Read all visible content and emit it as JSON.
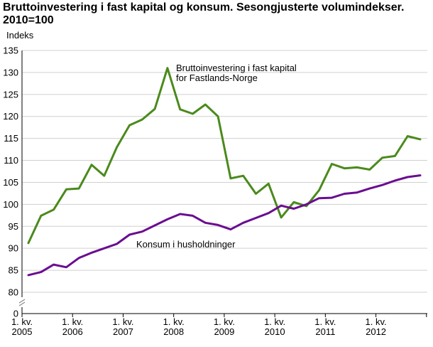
{
  "title": "Bruttoinvestering i fast kapital og konsum. Sesongjusterte volumindekser. 2010=100",
  "chart_data": {
    "type": "line",
    "ylabel": "Indeks",
    "ylim": [
      0,
      135
    ],
    "yticks": [
      0,
      80,
      85,
      90,
      95,
      100,
      105,
      110,
      115,
      120,
      125,
      130,
      135
    ],
    "y_axis_break": true,
    "grid": "horizontal",
    "x_tick_labels": [
      {
        "line1": "1. kv.",
        "line2": "2005"
      },
      {
        "line1": "1. kv.",
        "line2": "2006"
      },
      {
        "line1": "1. kv.",
        "line2": "2007"
      },
      {
        "line1": "1. kv.",
        "line2": "2008"
      },
      {
        "line1": "1. kv.",
        "line2": "2009"
      },
      {
        "line1": "1. kv.",
        "line2": "2010"
      },
      {
        "line1": "1. kv.",
        "line2": "2011"
      },
      {
        "line1": "1. kv.",
        "line2": "2012"
      }
    ],
    "x_quarters": [
      "2005K1",
      "2005K2",
      "2005K3",
      "2005K4",
      "2006K1",
      "2006K2",
      "2006K3",
      "2006K4",
      "2007K1",
      "2007K2",
      "2007K3",
      "2007K4",
      "2008K1",
      "2008K2",
      "2008K3",
      "2008K4",
      "2009K1",
      "2009K2",
      "2009K3",
      "2009K4",
      "2010K1",
      "2010K2",
      "2010K3",
      "2010K4",
      "2011K1",
      "2011K2",
      "2011K3",
      "2011K4",
      "2012K1",
      "2012K2",
      "2012K3",
      "2012K4"
    ],
    "series": [
      {
        "name": "Bruttoinvestering i fast kapital for Fastlands-Norge",
        "label_lines": [
          "Bruttoinvestering i fast kapital",
          "for Fastlands-Norge"
        ],
        "color": "#4a8a1c",
        "values": [
          91.2,
          97.4,
          98.8,
          103.4,
          103.6,
          109.0,
          106.5,
          113.0,
          118.0,
          119.3,
          121.7,
          131.0,
          121.6,
          120.6,
          122.7,
          120.0,
          105.9,
          106.5,
          102.4,
          104.7,
          97.0,
          100.5,
          99.6,
          103.2,
          109.2,
          108.2,
          108.4,
          107.9,
          110.6,
          111.0,
          115.5,
          114.8
        ]
      },
      {
        "name": "Konsum i husholdninger",
        "label_lines": [
          "Konsum i husholdninger"
        ],
        "color": "#6a0d91",
        "values": [
          83.9,
          84.6,
          86.3,
          85.7,
          87.8,
          89.0,
          90.0,
          91.0,
          93.1,
          93.8,
          95.2,
          96.6,
          97.8,
          97.4,
          95.8,
          95.3,
          94.3,
          95.8,
          96.9,
          98.0,
          99.7,
          99.0,
          100.0,
          101.4,
          101.5,
          102.4,
          102.7,
          103.6,
          104.4,
          105.4,
          106.2,
          106.6
        ]
      }
    ]
  }
}
